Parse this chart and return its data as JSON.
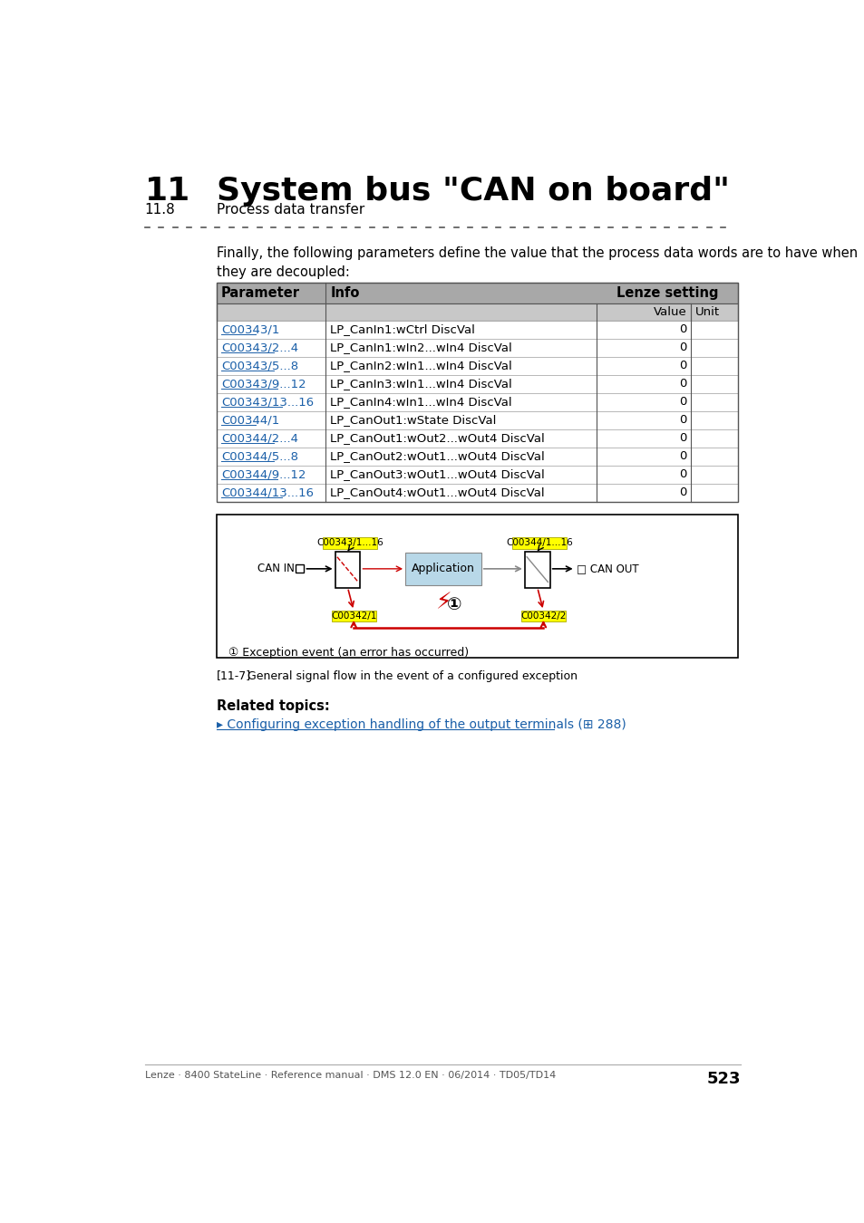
{
  "title_num": "11",
  "title_text": "System bus \"CAN on board\"",
  "subtitle_num": "11.8",
  "subtitle_text": "Process data transfer",
  "intro_text": "Finally, the following parameters define the value that the process data words are to have when\nthey are decoupled:",
  "table_rows": [
    [
      "C00343/1",
      "LP_CanIn1:wCtrl DiscVal",
      "0"
    ],
    [
      "C00343/2...4",
      "LP_CanIn1:wIn2...wIn4 DiscVal",
      "0"
    ],
    [
      "C00343/5...8",
      "LP_CanIn2:wIn1...wIn4 DiscVal",
      "0"
    ],
    [
      "C00343/9...12",
      "LP_CanIn3:wIn1...wIn4 DiscVal",
      "0"
    ],
    [
      "C00343/13...16",
      "LP_CanIn4:wIn1...wIn4 DiscVal",
      "0"
    ],
    [
      "C00344/1",
      "LP_CanOut1:wState DiscVal",
      "0"
    ],
    [
      "C00344/2...4",
      "LP_CanOut1:wOut2...wOut4 DiscVal",
      "0"
    ],
    [
      "C00344/5...8",
      "LP_CanOut2:wOut1...wOut4 DiscVal",
      "0"
    ],
    [
      "C00344/9...12",
      "LP_CanOut3:wOut1...wOut4 DiscVal",
      "0"
    ],
    [
      "C00344/13...16",
      "LP_CanOut4:wOut1...wOut4 DiscVal",
      "0"
    ]
  ],
  "diagram_label": "[11-7]",
  "diagram_caption": "General signal flow in the event of a configured exception",
  "related_topics_title": "Related topics:",
  "related_link": "▸ Configuring exception handling of the output terminals (⊞ 288)",
  "footer_text": "Lenze · 8400 StateLine · Reference manual · DMS 12.0 EN · 06/2014 · TD05/TD14",
  "footer_page": "523",
  "bg_color": "#ffffff",
  "header_bg": "#a8a8a8",
  "subheader_bg": "#c8c8c8",
  "link_color": "#1a5fa8",
  "yellow_highlight": "#ffff00"
}
